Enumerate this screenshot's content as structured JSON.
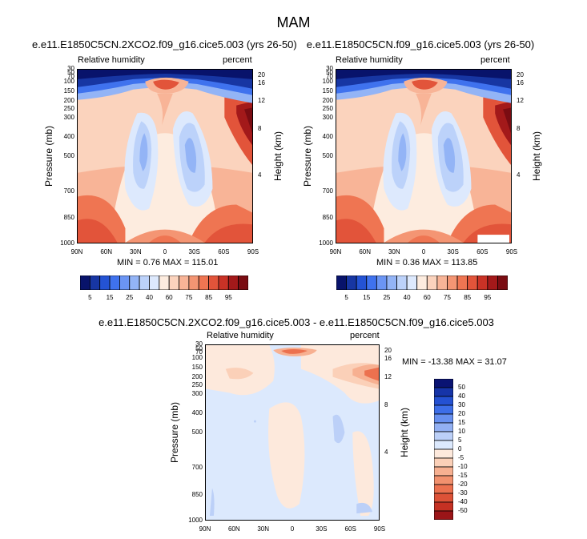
{
  "figure": {
    "suptitle": "MAM"
  },
  "colors": {
    "rh_levels": [
      "#08136b",
      "#1736a3",
      "#2453d4",
      "#3f72ee",
      "#6b95f4",
      "#93b4f6",
      "#bcd2fa",
      "#dde9fd",
      "#fdecdf",
      "#fbd3bd",
      "#f8b497",
      "#f49573",
      "#ef7552",
      "#e2543a",
      "#c93226",
      "#a3191a",
      "#7a0c12"
    ],
    "diff_levels": [
      "#0a1373",
      "#1634a8",
      "#2451d2",
      "#3d6ee8",
      "#6790f0",
      "#92b0f3",
      "#bcd0f8",
      "#dce9fd",
      "#fde9dc",
      "#fbd0b8",
      "#f7b091",
      "#f2916e",
      "#ec714f",
      "#dd5237",
      "#c53123",
      "#9b1518"
    ]
  },
  "panels": [
    {
      "title": "e.e11.E1850C5CN.2XCO2.f09_g16.cice5.003 (yrs 26-50)",
      "left_label": "Relative humidity",
      "right_label": "percent",
      "stats": "MIN =   0.76  MAX = 115.01"
    },
    {
      "title": "e.e11.E1850C5CN.f09_g16.cice5.003 (yrs 26-50)",
      "left_label": "Relative humidity",
      "right_label": "percent",
      "stats": "MIN =   0.36  MAX = 113.85"
    },
    {
      "title": "e.e11.E1850C5CN.2XCO2.f09_g16.cice5.003 - e.e11.E1850C5CN.f09_g16.cice5.003",
      "left_label": "Relative humidity",
      "right_label": "percent",
      "stats": "MIN = -13.38  MAX =  31.07"
    }
  ],
  "axes": {
    "ylabel": "Pressure (mb)",
    "y2label": "Height (km)",
    "pressure_ticks": [
      "30",
      "50",
      "70",
      "100",
      "150",
      "200",
      "250",
      "300",
      "400",
      "500",
      "700",
      "850",
      "1000"
    ],
    "height_ticks": [
      "20",
      "16",
      "12",
      "8",
      "4"
    ],
    "lat_ticks": [
      "90N",
      "60N",
      "30N",
      "0",
      "30S",
      "60S",
      "90S"
    ]
  },
  "colorbars": {
    "rh_labels": [
      "5",
      "15",
      "25",
      "40",
      "60",
      "75",
      "85",
      "95"
    ],
    "diff_labels": [
      "50",
      "40",
      "30",
      "20",
      "15",
      "10",
      "5",
      "0",
      "-5",
      "-10",
      "-15",
      "-20",
      "-30",
      "-40",
      "-50"
    ]
  },
  "chart_data": [
    {
      "type": "heatmap",
      "title": "e.e11.E1850C5CN.2XCO2.f09_g16.cice5.003 (yrs 26-50)",
      "xlabel": "",
      "ylabel": "Pressure (mb)",
      "x": [
        "90N",
        "60N",
        "30N",
        "0",
        "30S",
        "60S",
        "90S"
      ],
      "y": [
        30,
        50,
        70,
        100,
        150,
        200,
        250,
        300,
        400,
        500,
        700,
        850,
        1000
      ],
      "units": "percent",
      "min": 0.76,
      "max": 115.01,
      "levels": [
        5,
        10,
        15,
        20,
        25,
        30,
        40,
        50,
        60,
        65,
        70,
        75,
        80,
        85,
        90,
        95
      ]
    },
    {
      "type": "heatmap",
      "title": "e.e11.E1850C5CN.f09_g16.cice5.003 (yrs 26-50)",
      "xlabel": "",
      "ylabel": "Pressure (mb)",
      "x": [
        "90N",
        "60N",
        "30N",
        "0",
        "30S",
        "60S",
        "90S"
      ],
      "y": [
        30,
        50,
        70,
        100,
        150,
        200,
        250,
        300,
        400,
        500,
        700,
        850,
        1000
      ],
      "units": "percent",
      "min": 0.36,
      "max": 113.85,
      "levels": [
        5,
        10,
        15,
        20,
        25,
        30,
        40,
        50,
        60,
        65,
        70,
        75,
        80,
        85,
        90,
        95
      ]
    },
    {
      "type": "heatmap",
      "title": "e.e11.E1850C5CN.2XCO2.f09_g16.cice5.003 - e.e11.E1850C5CN.f09_g16.cice5.003",
      "xlabel": "",
      "ylabel": "Pressure (mb)",
      "x": [
        "90N",
        "60N",
        "30N",
        "0",
        "30S",
        "60S",
        "90S"
      ],
      "y": [
        30,
        50,
        70,
        100,
        150,
        200,
        250,
        300,
        400,
        500,
        700,
        850,
        1000
      ],
      "units": "percent",
      "min": -13.38,
      "max": 31.07,
      "levels": [
        -50,
        -40,
        -30,
        -20,
        -15,
        -10,
        -5,
        0,
        5,
        10,
        15,
        20,
        30,
        40,
        50
      ]
    }
  ]
}
